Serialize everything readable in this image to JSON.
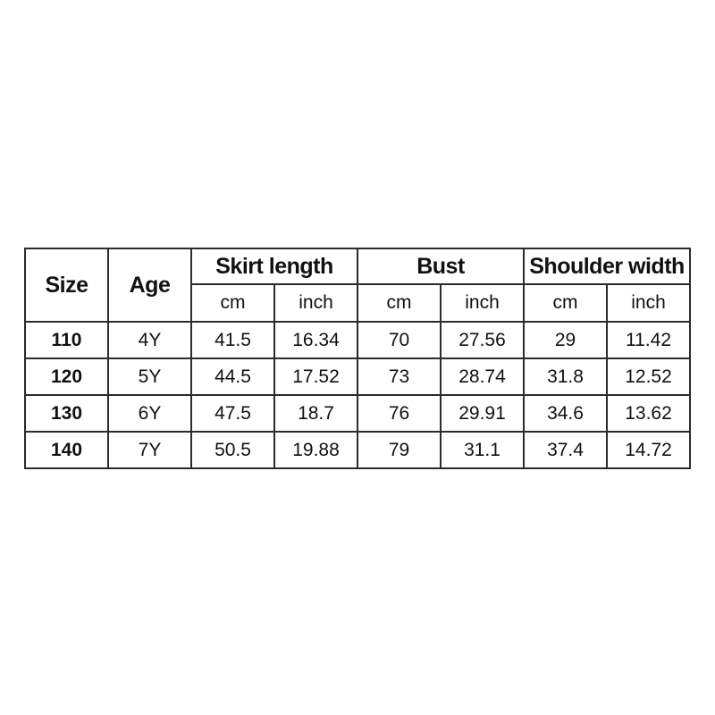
{
  "chart_data": {
    "type": "table",
    "headers": {
      "size": "Size",
      "age": "Age",
      "skirt_length": "Skirt length",
      "bust": "Bust",
      "shoulder_width": "Shoulder width"
    },
    "unit_headers": [
      "cm",
      "inch",
      "cm",
      "inch",
      "cm",
      "inch"
    ],
    "rows": [
      [
        "110",
        "4Y",
        "41.5",
        "16.34",
        "70",
        "27.56",
        "29",
        "11.42"
      ],
      [
        "120",
        "5Y",
        "44.5",
        "17.52",
        "73",
        "28.74",
        "31.8",
        "12.52"
      ],
      [
        "130",
        "6Y",
        "47.5",
        "18.7",
        "76",
        "29.91",
        "34.6",
        "13.62"
      ],
      [
        "140",
        "7Y",
        "50.5",
        "19.88",
        "79",
        "31.1",
        "37.4",
        "14.72"
      ]
    ],
    "layout": {
      "grid": "on",
      "column_count": 8,
      "merged_cells": "Size and Age span both header rows; Skirt length, Bust and Shoulder width each span two unit columns"
    }
  },
  "colors": {
    "border": "#2b2b2b",
    "text": "#111111",
    "background": "#ffffff"
  }
}
